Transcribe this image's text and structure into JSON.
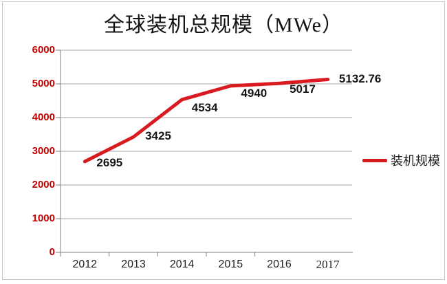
{
  "chart_data": {
    "type": "line",
    "title": "全球装机总规模（MWe）",
    "categories": [
      "2012",
      "2013",
      "2014",
      "2015",
      "2016",
      "2017"
    ],
    "series": [
      {
        "name": "装机规模",
        "values": [
          2695,
          3425,
          4534,
          4940,
          5017,
          5132.76
        ],
        "color": "#d81b21"
      }
    ],
    "data_labels": [
      "2695",
      "3425",
      "4534",
      "4940",
      "5017",
      "5132.76"
    ],
    "y_ticks": [
      "6000",
      "5000",
      "4000",
      "3000",
      "2000",
      "1000",
      "0"
    ],
    "ylim": [
      0,
      6000
    ],
    "ytick_step": 1000,
    "xlabel": "",
    "ylabel": "",
    "grid": "horizontal",
    "legend_position": "right-middle",
    "colors": {
      "series_line": "#d81b21",
      "y_tick_label": "#c00000",
      "gridline": "#a6a6a6",
      "axis": "#7f7f7f",
      "data_label": "#161616",
      "title": "#141414",
      "frame_border": "#c6c6c6"
    }
  }
}
